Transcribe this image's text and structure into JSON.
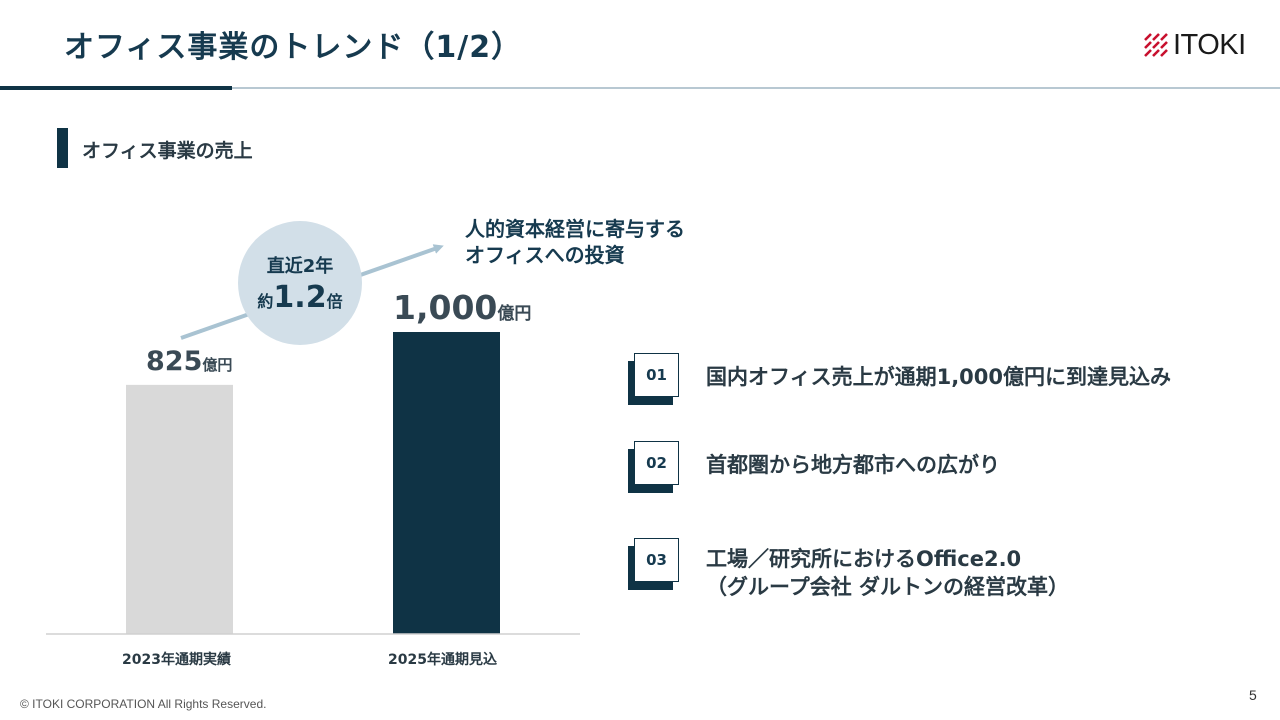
{
  "slide": {
    "title": "オフィス事業のトレンド（1/2）",
    "logo_text": "ITOKI",
    "section_title": "オフィス事業の売上",
    "copyright": "© ITOKI CORPORATION All Rights Reserved.",
    "page_number": "5"
  },
  "chart_data": {
    "type": "bar",
    "categories": [
      "2023年通期実績",
      "2025年通期見込"
    ],
    "values": [
      825,
      1000
    ],
    "value_labels": [
      {
        "number": "825",
        "unit": "億円"
      },
      {
        "number": "1,000",
        "unit": "億円"
      }
    ],
    "bar_colors": [
      "#d9d9d9",
      "#0f3345"
    ],
    "ylim": [
      0,
      1000
    ],
    "grid": false,
    "annotations": {
      "growth": {
        "line1": "直近2年",
        "prefix": "約",
        "multiplier": "1.2",
        "suffix": "倍"
      },
      "investment_line1": "人的資本経営に寄与する",
      "investment_line2": "オフィスへの投資"
    }
  },
  "points": [
    {
      "number": "01",
      "text": "国内オフィス売上が通期1,000億円に到達見込み"
    },
    {
      "number": "02",
      "text": "首都圏から地方都市への広がり"
    },
    {
      "number": "03",
      "line1": "工場／研究所におけるOffice2.0",
      "line2": "（グループ会社 ダルトンの経営改革）"
    }
  ],
  "colors": {
    "navy": "#0f3345",
    "accent_light": "#d2dfe8",
    "arrow": "#a9c3d2"
  }
}
